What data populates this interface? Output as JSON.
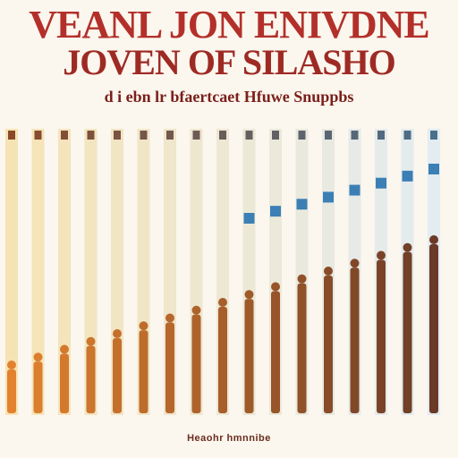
{
  "header": {
    "line1": "VEANL JON ENIVDNE",
    "line2": "JOVEN OF SILASHO",
    "line3": "d i ebn lr bfaertcaet Hfuwe Snuppbs"
  },
  "footer": {
    "caption": "Heaohr hmnnibe"
  },
  "colors": {
    "title": "#b3302a",
    "warm_strip": "#f6e3b4",
    "cool_strip": "#e3ecf1",
    "figure_warm": "#e2822f",
    "figure_dark": "#6b3a26"
  }
}
